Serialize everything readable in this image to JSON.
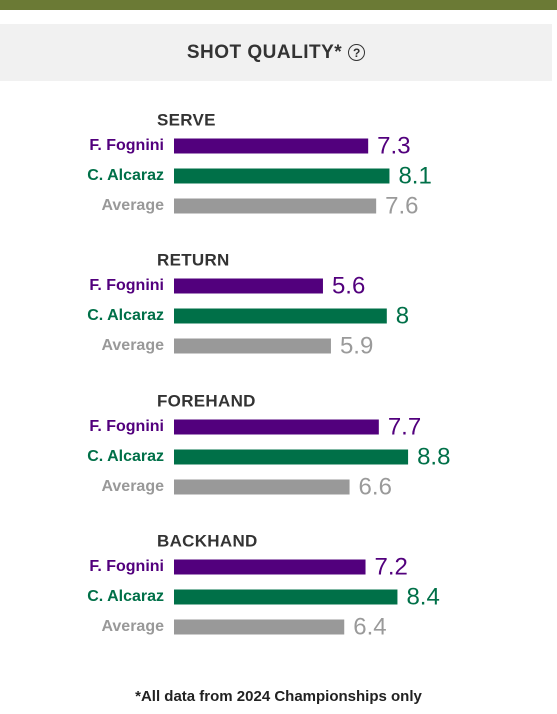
{
  "header": {
    "title": "SHOT QUALITY*",
    "help_icon": "question-circle-icon"
  },
  "chart_data": {
    "type": "bar",
    "orientation": "horizontal",
    "groups": [
      {
        "title": "SERVE",
        "values": [
          7.3,
          8.1,
          7.6
        ]
      },
      {
        "title": "RETURN",
        "values": [
          5.6,
          8,
          5.9
        ]
      },
      {
        "title": "FOREHAND",
        "values": [
          7.7,
          8.8,
          6.6
        ]
      },
      {
        "title": "BACKHAND",
        "values": [
          7.2,
          8.4,
          6.4
        ]
      }
    ],
    "series": [
      {
        "name": "F. Fognini",
        "color": "#52007d"
      },
      {
        "name": "C. Alcaraz",
        "color": "#007048"
      },
      {
        "name": "Average",
        "color": "#999999"
      }
    ],
    "xlim": [
      0,
      10
    ]
  },
  "footnote": "*All data from 2024 Championships only"
}
